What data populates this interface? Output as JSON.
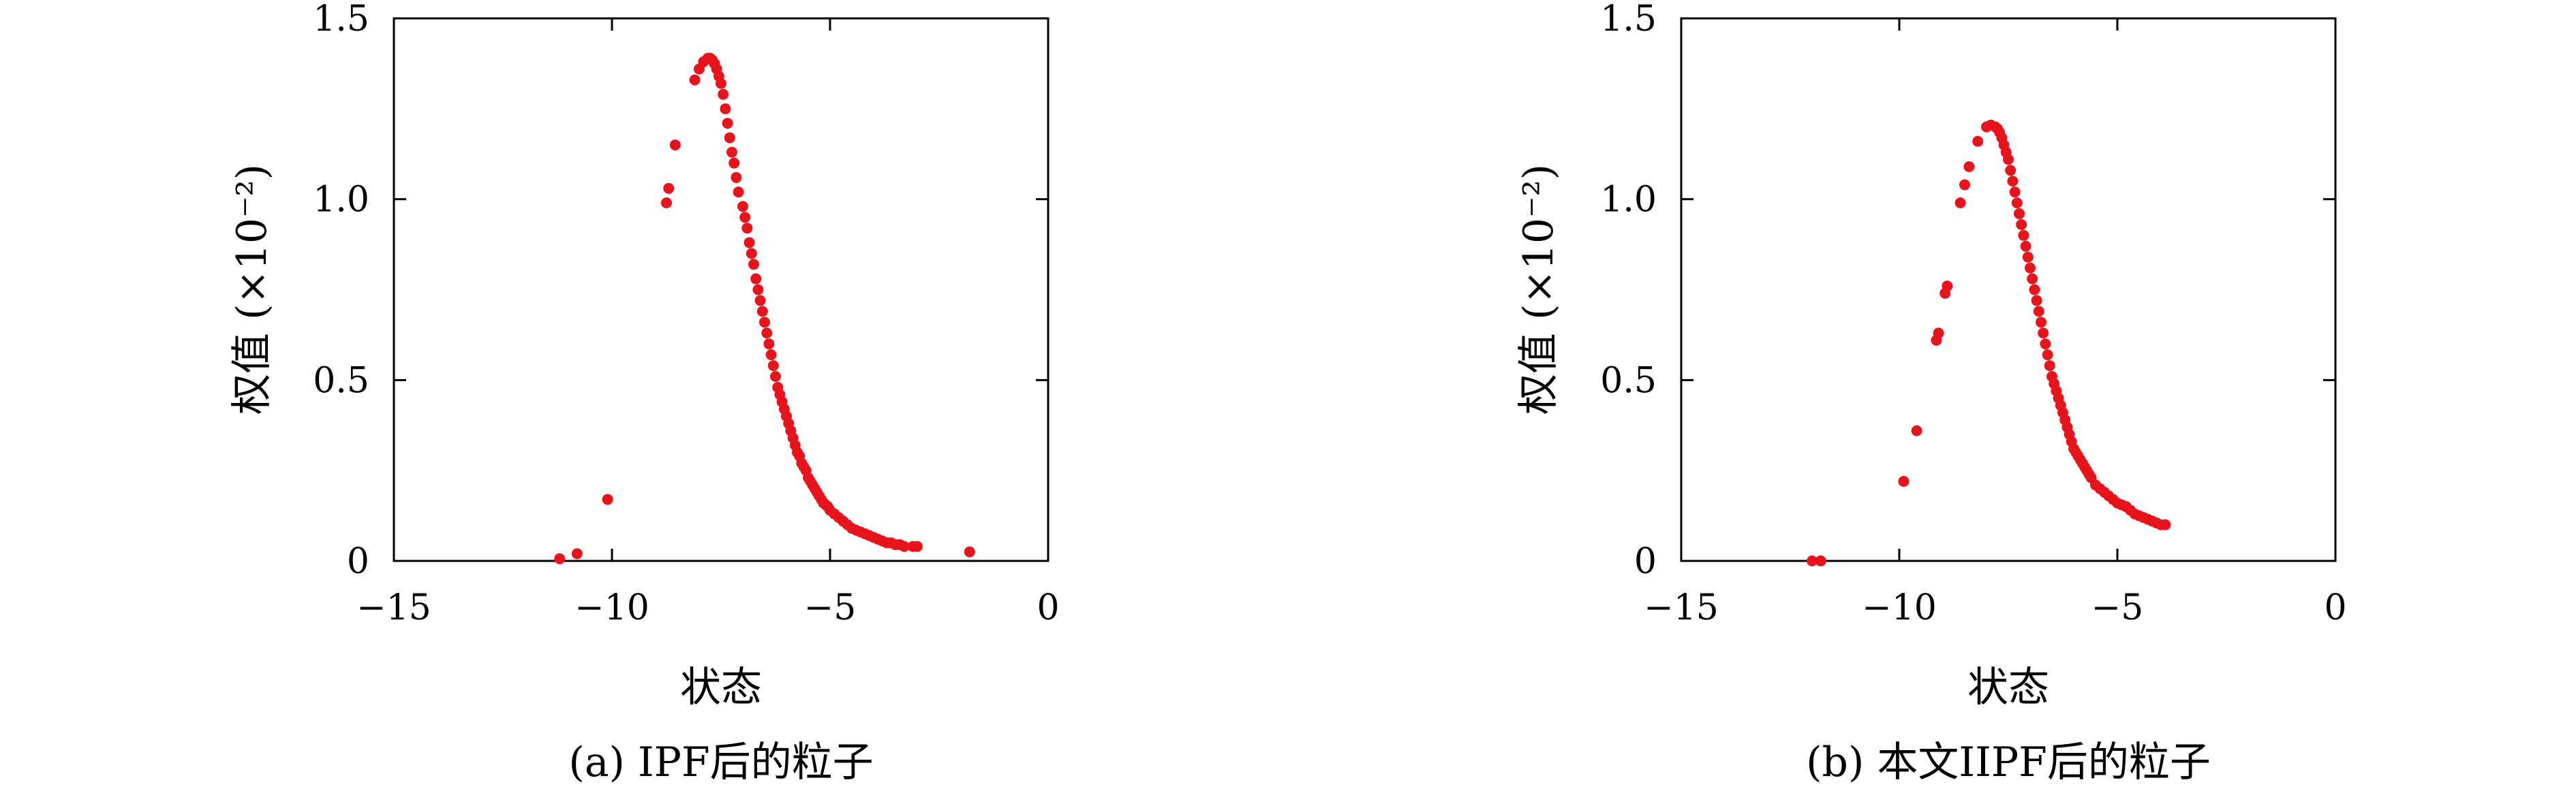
{
  "chart_data": [
    {
      "type": "scatter",
      "caption": "(a) IPF后的粒子",
      "xlabel": "状态",
      "ylabel": "权值 (×10⁻²)",
      "xlim": [
        -15,
        0
      ],
      "ylim": [
        0,
        1.5
      ],
      "x_ticks": [
        -15,
        -10,
        -5,
        0
      ],
      "x_tick_labels": [
        "−15",
        "−10",
        "−5",
        "0"
      ],
      "y_ticks": [
        0,
        0.5,
        1.0,
        1.5
      ],
      "y_tick_labels": [
        "0",
        "0.5",
        "1.0",
        "1.5"
      ],
      "grid": false,
      "marker_color": "#e8141c",
      "series": [
        {
          "x": [
            -11.2,
            -10.8,
            -10.1,
            -8.75,
            -8.7,
            -8.55,
            -8.1,
            -8.0,
            -7.9,
            -7.8,
            -7.75,
            -7.7,
            -7.65,
            -7.6,
            -7.55,
            -7.5,
            -7.45,
            -7.4,
            -7.35,
            -7.3,
            -7.25,
            -7.2,
            -7.15,
            -7.1,
            -7.0,
            -6.95,
            -6.9,
            -6.85,
            -6.8,
            -6.75,
            -6.7,
            -6.65,
            -6.6,
            -6.55,
            -6.5,
            -6.45,
            -6.4,
            -6.35,
            -6.3,
            -6.25,
            -6.2,
            -6.15,
            -6.1,
            -6.05,
            -6.0,
            -5.95,
            -5.9,
            -5.85,
            -5.8,
            -5.75,
            -5.7,
            -5.65,
            -5.6,
            -5.55,
            -5.5,
            -5.45,
            -5.4,
            -5.35,
            -5.3,
            -5.25,
            -5.2,
            -5.15,
            -5.1,
            -5.05,
            -5.0,
            -4.9,
            -4.8,
            -4.7,
            -4.6,
            -4.5,
            -4.4,
            -4.3,
            -4.2,
            -4.1,
            -4.0,
            -3.9,
            -3.8,
            -3.7,
            -3.6,
            -3.5,
            -3.4,
            -3.3,
            -3.1,
            -3.0,
            -1.8
          ],
          "y": [
            0.006,
            0.02,
            0.17,
            0.99,
            1.03,
            1.15,
            1.33,
            1.36,
            1.38,
            1.39,
            1.39,
            1.385,
            1.375,
            1.36,
            1.34,
            1.32,
            1.29,
            1.25,
            1.21,
            1.17,
            1.13,
            1.1,
            1.06,
            1.02,
            0.98,
            0.95,
            0.92,
            0.88,
            0.85,
            0.82,
            0.78,
            0.75,
            0.72,
            0.69,
            0.66,
            0.63,
            0.6,
            0.57,
            0.54,
            0.51,
            0.48,
            0.46,
            0.44,
            0.42,
            0.4,
            0.38,
            0.36,
            0.34,
            0.32,
            0.3,
            0.29,
            0.27,
            0.26,
            0.25,
            0.23,
            0.22,
            0.21,
            0.2,
            0.19,
            0.18,
            0.17,
            0.16,
            0.155,
            0.15,
            0.14,
            0.13,
            0.12,
            0.11,
            0.1,
            0.09,
            0.085,
            0.08,
            0.075,
            0.07,
            0.065,
            0.06,
            0.055,
            0.05,
            0.05,
            0.045,
            0.045,
            0.04,
            0.04,
            0.04,
            0.025
          ]
        }
      ]
    },
    {
      "type": "scatter",
      "caption": "(b) 本文IIPF后的粒子",
      "xlabel": "状态",
      "ylabel": "权值 (×10⁻²)",
      "xlim": [
        -15,
        0
      ],
      "ylim": [
        0,
        1.5
      ],
      "x_ticks": [
        -15,
        -10,
        -5,
        0
      ],
      "x_tick_labels": [
        "−15",
        "−10",
        "−5",
        "0"
      ],
      "y_ticks": [
        0,
        0.5,
        1.0,
        1.5
      ],
      "y_tick_labels": [
        "0",
        "0.5",
        "1.0",
        "1.5"
      ],
      "grid": false,
      "marker_color": "#e8141c",
      "series": [
        {
          "x": [
            -12.0,
            -11.8,
            -9.9,
            -9.6,
            -9.15,
            -9.1,
            -8.95,
            -8.9,
            -8.6,
            -8.5,
            -8.4,
            -8.2,
            -8.0,
            -7.9,
            -7.8,
            -7.75,
            -7.7,
            -7.65,
            -7.6,
            -7.55,
            -7.5,
            -7.45,
            -7.4,
            -7.35,
            -7.3,
            -7.25,
            -7.2,
            -7.15,
            -7.1,
            -7.05,
            -7.0,
            -6.95,
            -6.9,
            -6.85,
            -6.8,
            -6.75,
            -6.7,
            -6.65,
            -6.6,
            -6.55,
            -6.5,
            -6.45,
            -6.4,
            -6.35,
            -6.3,
            -6.25,
            -6.2,
            -6.15,
            -6.1,
            -6.05,
            -6.0,
            -5.95,
            -5.9,
            -5.85,
            -5.8,
            -5.75,
            -5.7,
            -5.65,
            -5.6,
            -5.5,
            -5.4,
            -5.3,
            -5.2,
            -5.1,
            -5.0,
            -4.9,
            -4.8,
            -4.7,
            -4.6,
            -4.5,
            -4.4,
            -4.3,
            -4.2,
            -4.1,
            -4.0,
            -3.9
          ],
          "y": [
            0.0,
            0.0,
            0.22,
            0.36,
            0.61,
            0.63,
            0.74,
            0.76,
            0.99,
            1.04,
            1.09,
            1.16,
            1.2,
            1.205,
            1.2,
            1.195,
            1.185,
            1.17,
            1.15,
            1.13,
            1.11,
            1.08,
            1.05,
            1.02,
            0.99,
            0.96,
            0.93,
            0.9,
            0.87,
            0.84,
            0.81,
            0.78,
            0.75,
            0.72,
            0.69,
            0.66,
            0.63,
            0.6,
            0.57,
            0.54,
            0.51,
            0.49,
            0.47,
            0.45,
            0.43,
            0.41,
            0.39,
            0.37,
            0.35,
            0.33,
            0.31,
            0.3,
            0.29,
            0.28,
            0.27,
            0.26,
            0.25,
            0.24,
            0.23,
            0.21,
            0.2,
            0.19,
            0.18,
            0.17,
            0.16,
            0.155,
            0.15,
            0.14,
            0.13,
            0.125,
            0.12,
            0.115,
            0.11,
            0.105,
            0.1,
            0.1
          ]
        }
      ]
    }
  ]
}
